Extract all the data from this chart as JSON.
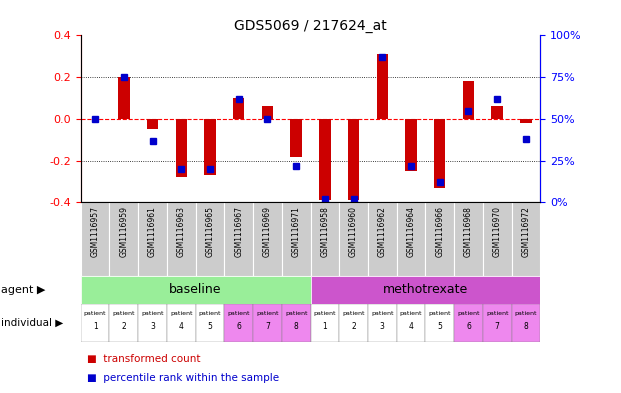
{
  "title": "GDS5069 / 217624_at",
  "sample_ids": [
    "GSM1116957",
    "GSM1116959",
    "GSM1116961",
    "GSM1116963",
    "GSM1116965",
    "GSM1116967",
    "GSM1116969",
    "GSM1116971",
    "GSM1116958",
    "GSM1116960",
    "GSM1116962",
    "GSM1116964",
    "GSM1116966",
    "GSM1116968",
    "GSM1116970",
    "GSM1116972"
  ],
  "transformed_count": [
    0.0,
    0.2,
    -0.05,
    -0.28,
    -0.27,
    0.1,
    0.06,
    -0.18,
    -0.39,
    -0.39,
    0.31,
    -0.25,
    -0.33,
    0.18,
    0.06,
    -0.02
  ],
  "percentile_rank": [
    50,
    75,
    37,
    20,
    20,
    62,
    50,
    22,
    2,
    2,
    87,
    22,
    12,
    55,
    62,
    38
  ],
  "ylim": [
    -0.4,
    0.4
  ],
  "y2lim": [
    0,
    100
  ],
  "yticks": [
    -0.4,
    -0.2,
    0.0,
    0.2,
    0.4
  ],
  "y2ticks": [
    0,
    25,
    50,
    75,
    100
  ],
  "bar_color": "#cc0000",
  "dot_color": "#0000cc",
  "baseline_color": "#99ee99",
  "methotrexate_color": "#cc55cc",
  "patient_bg_white": "#ffffff",
  "patient_bg_pink": "#ee88ee",
  "gsm_bg": "#cccccc",
  "agent_label": "agent",
  "individual_label": "individual",
  "baseline_label": "baseline",
  "methotrexate_label": "methotrexate",
  "baseline_count": 8,
  "methotrexate_count": 8,
  "patient_numbers_baseline": [
    1,
    2,
    3,
    4,
    5,
    6,
    7,
    8
  ],
  "patient_numbers_methotrexate": [
    1,
    2,
    3,
    4,
    5,
    6,
    7,
    8
  ]
}
